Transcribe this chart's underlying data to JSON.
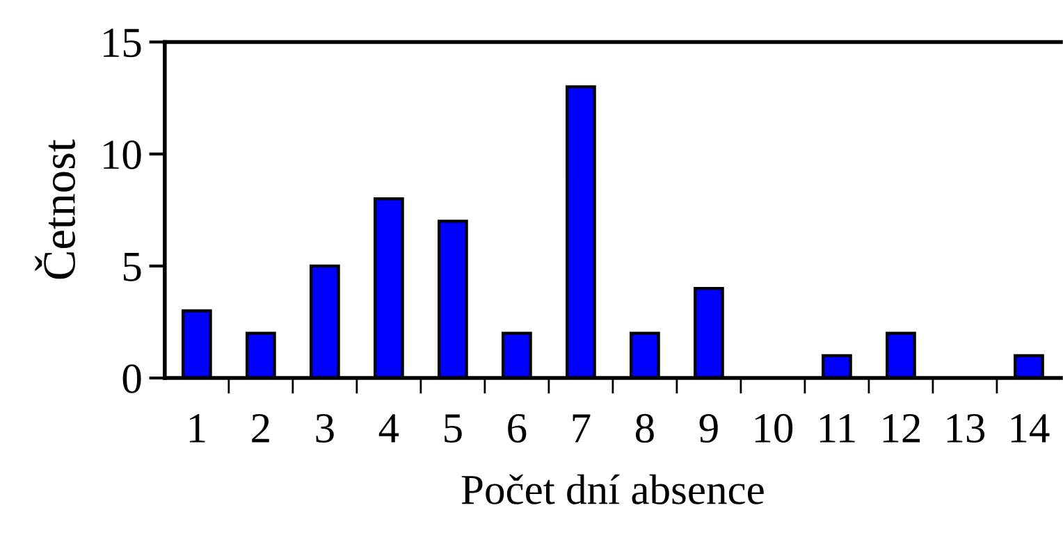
{
  "chart_data": {
    "type": "bar",
    "xlabel": "Počet dní absence",
    "ylabel": "Četnost",
    "categories": [
      "1",
      "2",
      "3",
      "4",
      "5",
      "6",
      "7",
      "8",
      "9",
      "10",
      "11",
      "12",
      "13",
      "14"
    ],
    "values": [
      3,
      2,
      5,
      8,
      7,
      2,
      13,
      2,
      4,
      0,
      1,
      2,
      0,
      1
    ],
    "color": "#0000ff",
    "ylim": [
      0,
      15
    ],
    "yticks": [
      0,
      5,
      10,
      15
    ],
    "grid": false,
    "legend": false
  }
}
